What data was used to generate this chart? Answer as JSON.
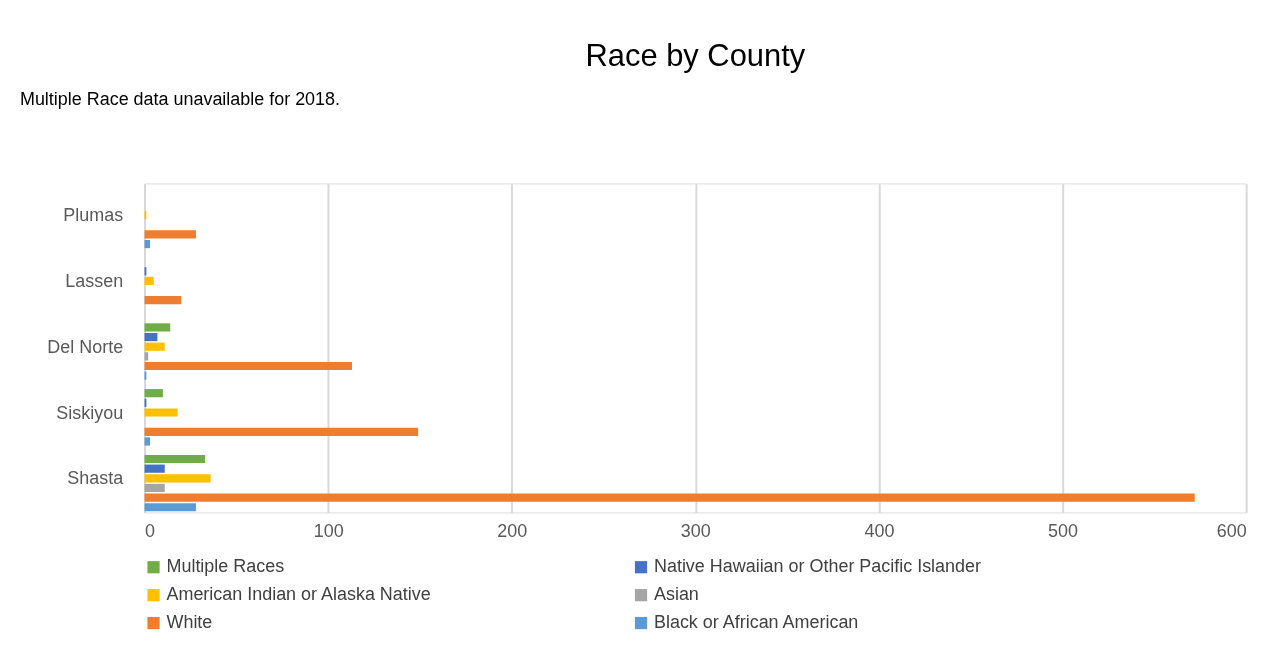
{
  "chart_data": {
    "type": "bar",
    "orientation": "horizontal",
    "title": "Race by County",
    "annotations": [
      "Multiple Race data unavailable for 2018."
    ],
    "categories": [
      "Plumas",
      "Lassen",
      "Del Norte",
      "Siskiyou",
      "Shasta"
    ],
    "series": [
      {
        "name": "Multiple Races",
        "color": "#70ad47",
        "values": [
          0,
          0,
          14,
          10,
          33
        ]
      },
      {
        "name": "Native Hawaiian or Other Pacific Islander",
        "color": "#4472c4",
        "values": [
          0,
          1,
          7,
          1,
          11
        ]
      },
      {
        "name": "American Indian or Alaska Native",
        "color": "#ffc000",
        "values": [
          1,
          5,
          11,
          18,
          36
        ]
      },
      {
        "name": "Asian",
        "color": "#a5a5a5",
        "values": [
          0,
          0,
          2,
          0,
          11
        ]
      },
      {
        "name": "White",
        "color": "#ed7d31",
        "values": [
          28,
          20,
          113,
          149,
          572
        ]
      },
      {
        "name": "Black or African American",
        "color": "#5b9bd5",
        "values": [
          3,
          0,
          1,
          3,
          28
        ]
      }
    ],
    "xlim": [
      0,
      600
    ],
    "xticks": [
      0,
      100,
      200,
      300,
      400,
      500,
      600
    ],
    "grid": "x",
    "legend": "bottom"
  }
}
